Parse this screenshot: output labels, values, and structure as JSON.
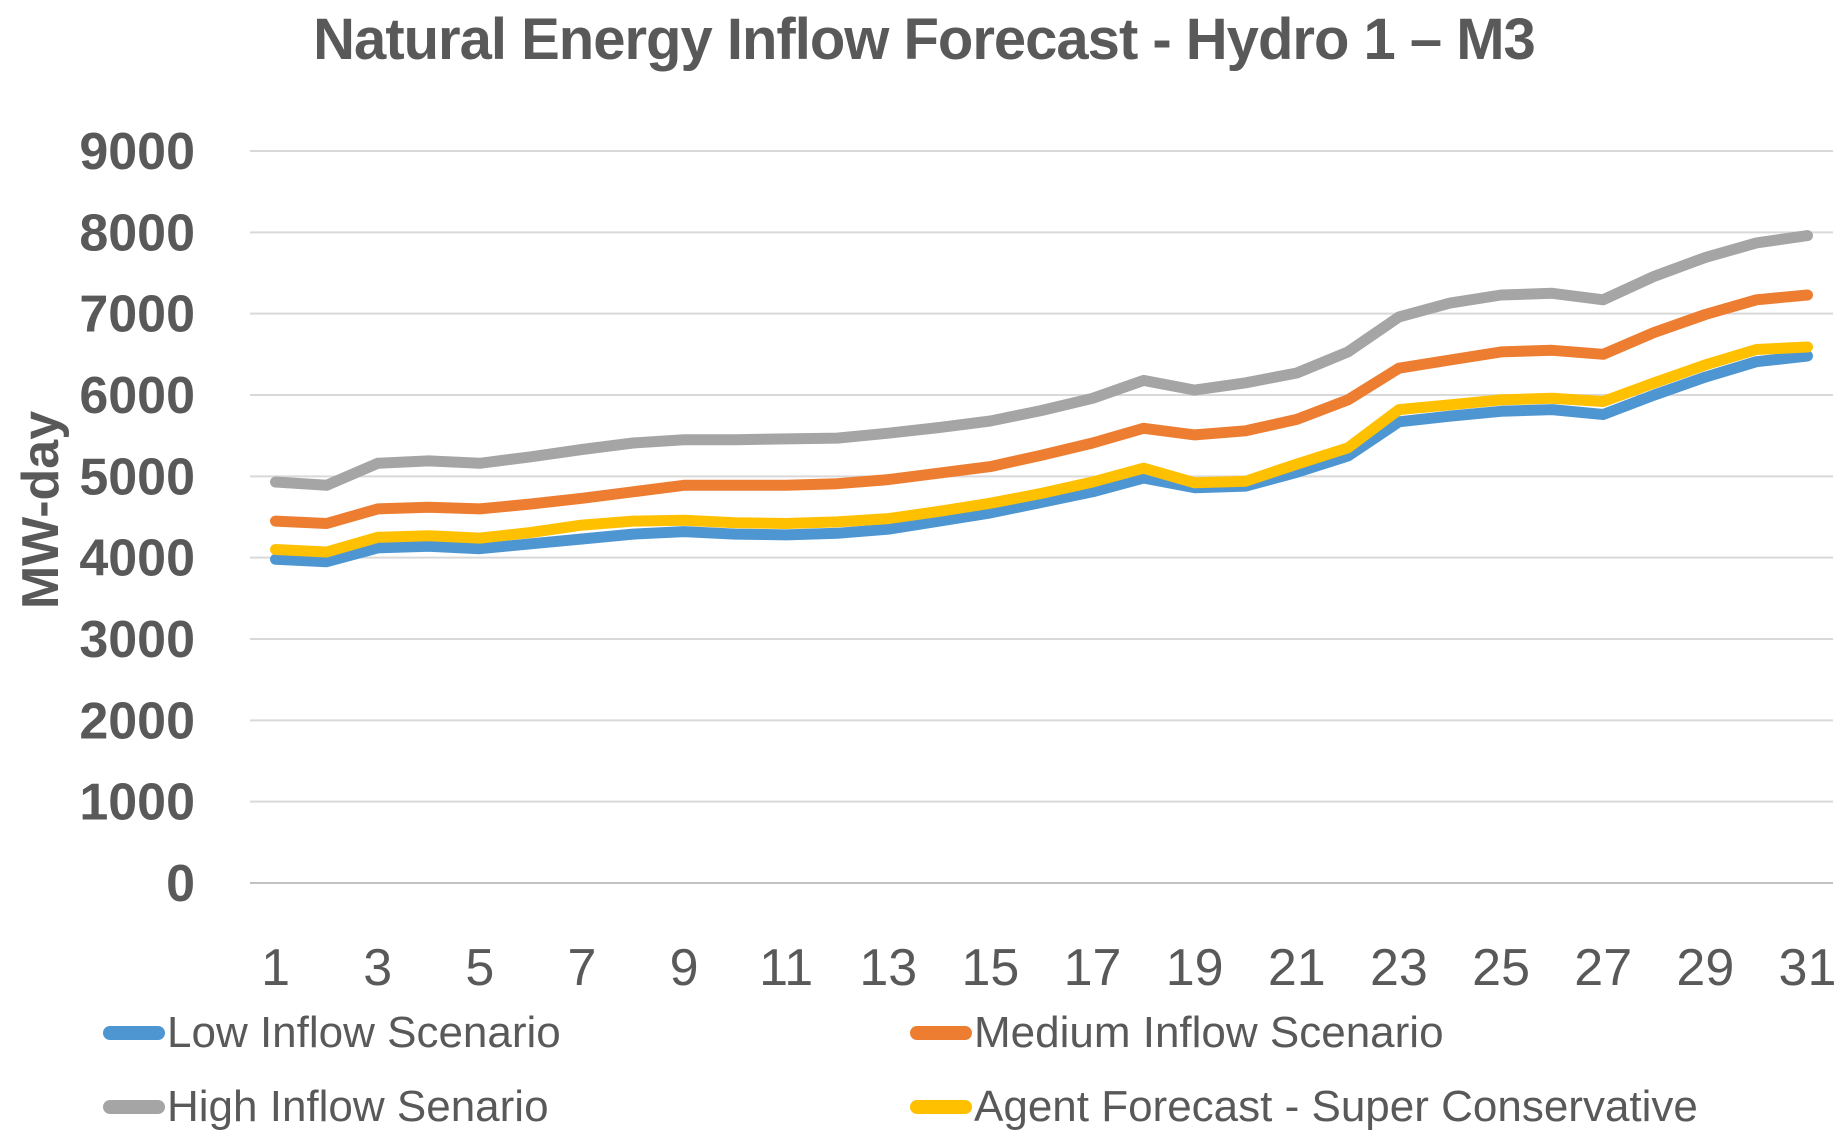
{
  "page_title": "Natural Energy Inflow Forecast - Hydro 1 – M3",
  "colors": {
    "text": "#595959",
    "gridline": "#D9D9D9",
    "axis_line": "#C2C2C2",
    "background": "#FFFFFF"
  },
  "chart_data": {
    "type": "line",
    "title": "Natural Energy Inflow Forecast - Hydro 1 – M3",
    "xlabel": "",
    "ylabel": "MW-day",
    "ylim": [
      0,
      9000
    ],
    "yticks": [
      0,
      1000,
      2000,
      3000,
      4000,
      5000,
      6000,
      7000,
      8000,
      9000
    ],
    "xticks": [
      1,
      3,
      5,
      7,
      9,
      11,
      13,
      15,
      17,
      19,
      21,
      23,
      25,
      27,
      29,
      31
    ],
    "x": [
      1,
      2,
      3,
      4,
      5,
      6,
      7,
      8,
      9,
      10,
      11,
      12,
      13,
      14,
      15,
      16,
      17,
      18,
      19,
      20,
      21,
      22,
      23,
      24,
      25,
      26,
      27,
      28,
      29,
      30,
      31
    ],
    "grid": "horizontal",
    "legend_position": "bottom-two-columns",
    "series": [
      {
        "name": "Low Inflow Scenario",
        "color": "#4D96D2",
        "values": [
          3980,
          3950,
          4120,
          4140,
          4110,
          4170,
          4230,
          4290,
          4320,
          4290,
          4280,
          4300,
          4350,
          4450,
          4550,
          4680,
          4810,
          4980,
          4860,
          4880,
          5050,
          5250,
          5670,
          5740,
          5800,
          5820,
          5760,
          6000,
          6220,
          6410,
          6480
        ]
      },
      {
        "name": "Medium Inflow Scenario",
        "color": "#ED7D31",
        "values": [
          4450,
          4420,
          4600,
          4620,
          4600,
          4660,
          4730,
          4810,
          4890,
          4890,
          4890,
          4910,
          4960,
          5040,
          5120,
          5260,
          5410,
          5590,
          5510,
          5560,
          5700,
          5940,
          6330,
          6430,
          6530,
          6550,
          6500,
          6770,
          6990,
          7170,
          7230
        ]
      },
      {
        "name": "High Inflow Senario",
        "color": "#A5A5A5",
        "values": [
          4930,
          4890,
          5160,
          5190,
          5160,
          5240,
          5330,
          5410,
          5450,
          5450,
          5460,
          5470,
          5530,
          5600,
          5680,
          5810,
          5960,
          6180,
          6060,
          6150,
          6270,
          6530,
          6960,
          7130,
          7230,
          7250,
          7170,
          7460,
          7690,
          7870,
          7960
        ]
      },
      {
        "name": "Agent Forecast - Super Conservative",
        "color": "#FFC000",
        "values": [
          4100,
          4070,
          4250,
          4270,
          4240,
          4310,
          4400,
          4450,
          4460,
          4430,
          4420,
          4440,
          4480,
          4570,
          4670,
          4790,
          4930,
          5100,
          4920,
          4940,
          5150,
          5350,
          5820,
          5880,
          5940,
          5960,
          5920,
          6150,
          6370,
          6560,
          6590
        ]
      }
    ]
  }
}
